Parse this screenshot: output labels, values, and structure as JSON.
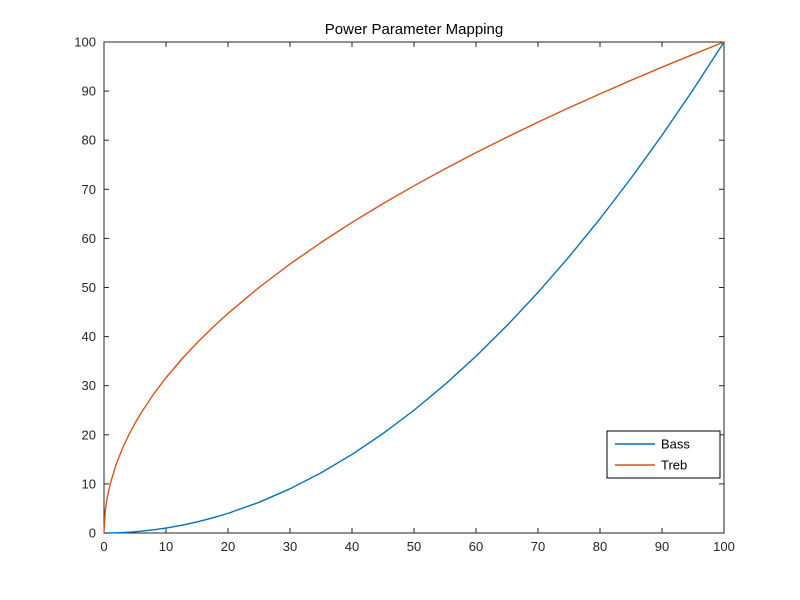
{
  "figure": {
    "background": "#ffffff"
  },
  "chart_data": {
    "type": "line",
    "title": "Power Parameter Mapping",
    "xlabel": "",
    "ylabel": "",
    "xlim": [
      0,
      100
    ],
    "ylim": [
      0,
      100
    ],
    "x_ticks": [
      0,
      10,
      20,
      30,
      40,
      50,
      60,
      70,
      80,
      90,
      100
    ],
    "y_ticks": [
      0,
      10,
      20,
      30,
      40,
      50,
      60,
      70,
      80,
      90,
      100
    ],
    "grid": false,
    "axis_color": "#262626",
    "x": [
      0,
      0.2,
      0.5,
      1,
      2,
      3,
      4,
      5,
      6,
      8,
      10,
      12.5,
      15,
      17.5,
      20,
      25,
      30,
      35,
      40,
      45,
      50,
      55,
      60,
      65,
      70,
      75,
      80,
      85,
      90,
      95,
      100
    ],
    "series": [
      {
        "name": "Bass",
        "color": "#0072BD",
        "values": [
          0,
          0,
          0,
          0.01,
          0.04,
          0.09,
          0.16,
          0.25,
          0.36,
          0.64,
          1,
          1.56,
          2.25,
          3.06,
          4,
          6.25,
          9,
          12.25,
          16,
          20.25,
          25,
          30.25,
          36,
          42.25,
          49,
          56.25,
          64,
          72.25,
          81,
          90.25,
          100
        ]
      },
      {
        "name": "Treb",
        "color": "#D95319",
        "values": [
          0,
          4.47,
          7.07,
          10,
          14.14,
          17.32,
          20,
          22.36,
          24.49,
          28.28,
          31.62,
          35.36,
          38.73,
          41.83,
          44.72,
          50,
          54.77,
          59.16,
          63.25,
          67.08,
          70.71,
          74.16,
          77.46,
          80.62,
          83.67,
          86.6,
          89.44,
          92.2,
          94.87,
          97.47,
          100
        ]
      }
    ],
    "legend": {
      "entries": [
        "Bass",
        "Treb"
      ],
      "position": "lower-right",
      "border_color": "#000000",
      "background": "#ffffff"
    }
  }
}
